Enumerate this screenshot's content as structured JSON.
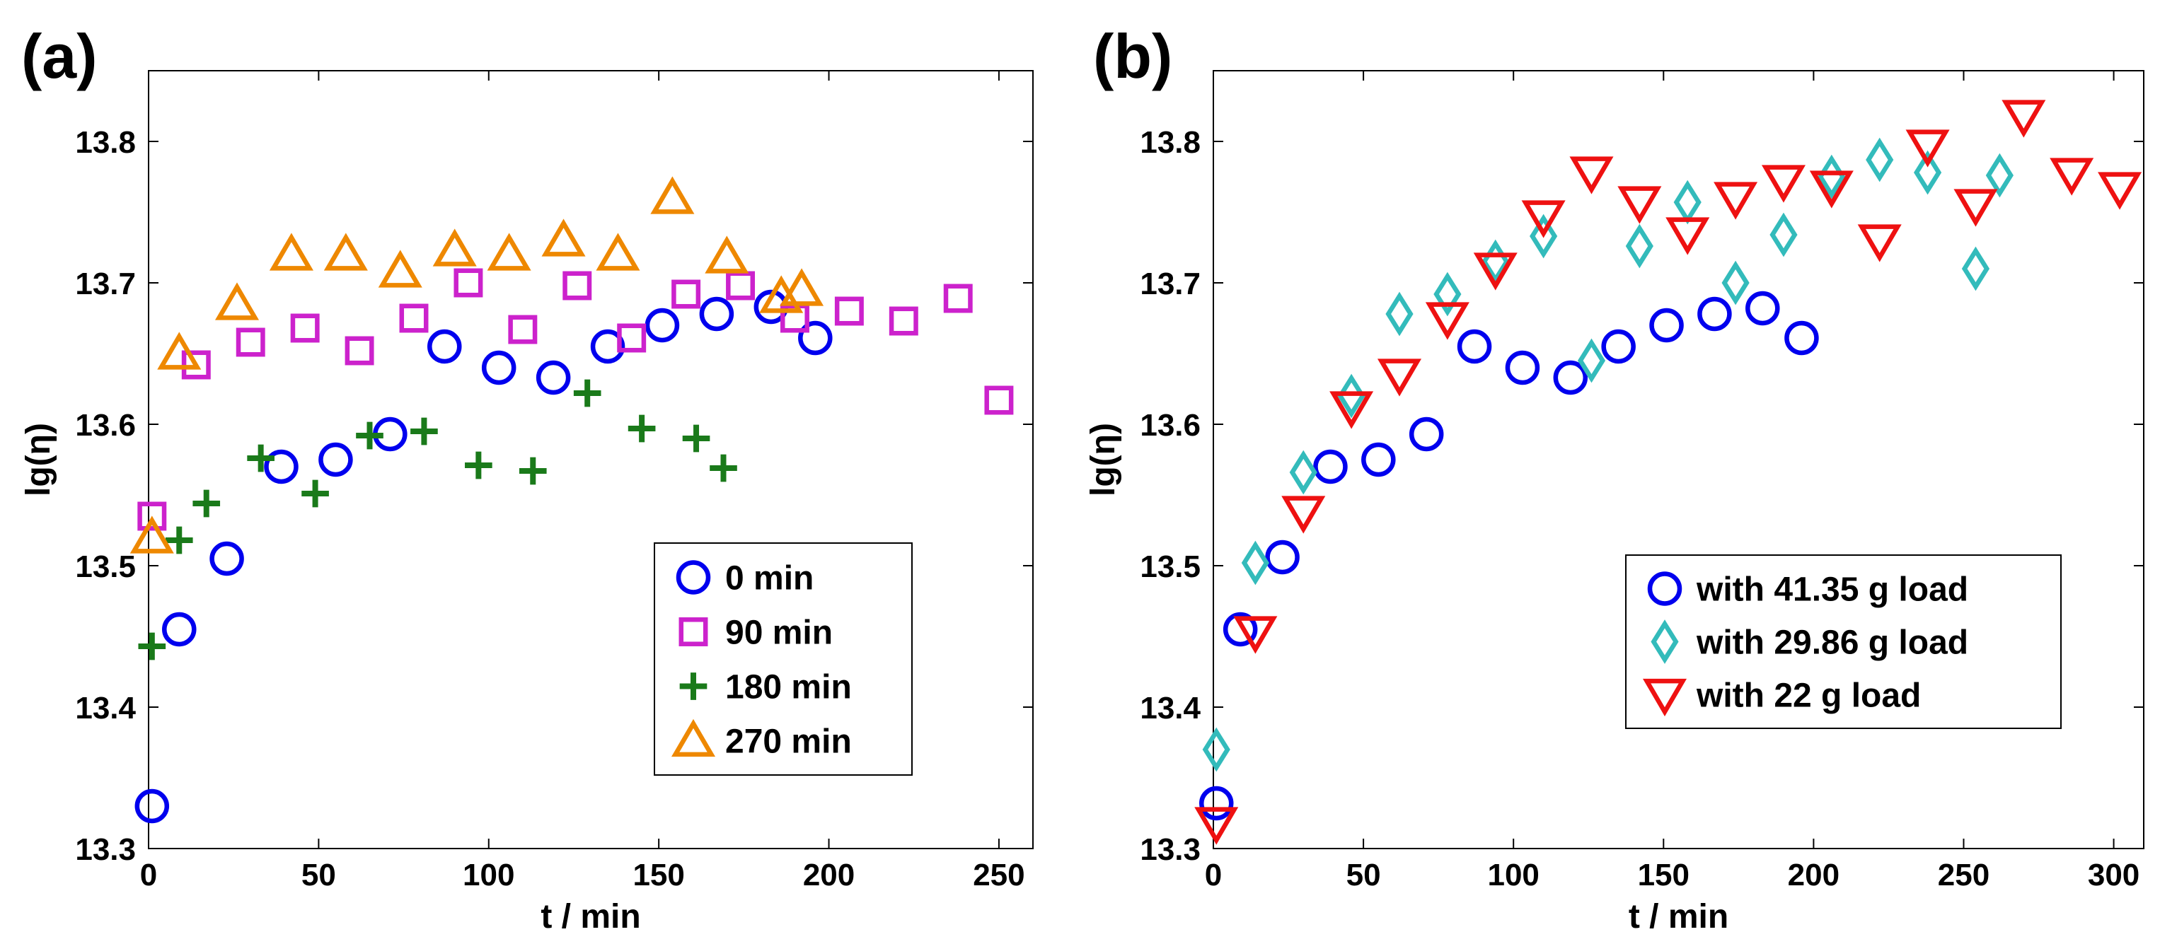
{
  "chart_data": [
    {
      "panel": "(a)",
      "type": "scatter",
      "xlabel": "t / min",
      "ylabel": "lg(η)",
      "xlim": [
        0,
        260
      ],
      "ylim": [
        13.3,
        13.85
      ],
      "xticks": [
        0,
        50,
        100,
        150,
        200,
        250
      ],
      "yticks": [
        13.3,
        13.4,
        13.5,
        13.6,
        13.7,
        13.8
      ],
      "xtick_labels": [
        "0",
        "50",
        "100",
        "150",
        "200",
        "250"
      ],
      "ytick_labels": [
        "13.3",
        "13.4",
        "13.5",
        "13.6",
        "13.7",
        "13.8"
      ],
      "legend_position": "bottom-right",
      "series": [
        {
          "name": "0 min",
          "marker": "circle",
          "color": "#0000ee",
          "x": [
            1,
            9,
            23,
            39,
            55,
            71,
            87,
            103,
            119,
            135,
            151,
            167,
            183,
            196
          ],
          "y": [
            13.33,
            13.455,
            13.505,
            13.57,
            13.575,
            13.593,
            13.655,
            13.64,
            13.633,
            13.655,
            13.67,
            13.678,
            13.683,
            13.661
          ]
        },
        {
          "name": "90 min",
          "marker": "square",
          "color": "#cc22cc",
          "x": [
            1,
            14,
            30,
            46,
            62,
            78,
            94,
            110,
            126,
            142,
            158,
            174,
            190,
            206,
            222,
            238,
            250
          ],
          "y": [
            13.535,
            13.642,
            13.658,
            13.668,
            13.652,
            13.675,
            13.7,
            13.667,
            13.698,
            13.661,
            13.692,
            13.698,
            13.675,
            13.68,
            13.673,
            13.689,
            13.617
          ]
        },
        {
          "name": "180 min",
          "marker": "plus",
          "color": "#1a7a1a",
          "x": [
            1,
            9,
            17,
            33,
            49,
            65,
            81,
            97,
            113,
            129,
            145,
            161,
            169
          ],
          "y": [
            13.443,
            13.518,
            13.544,
            13.576,
            13.551,
            13.592,
            13.595,
            13.571,
            13.567,
            13.622,
            13.597,
            13.59,
            13.569
          ]
        },
        {
          "name": "270 min",
          "marker": "triangle-up",
          "color": "#ee8800",
          "x": [
            1,
            9,
            26,
            42,
            58,
            74,
            90,
            106,
            122,
            138,
            154,
            170,
            186,
            192
          ],
          "y": [
            13.52,
            13.65,
            13.685,
            13.72,
            13.72,
            13.708,
            13.723,
            13.72,
            13.73,
            13.72,
            13.76,
            13.718,
            13.69,
            13.695
          ]
        }
      ]
    },
    {
      "panel": "(b)",
      "type": "scatter",
      "xlabel": "t / min",
      "ylabel": "lg(η)",
      "xlim": [
        0,
        310
      ],
      "ylim": [
        13.3,
        13.85
      ],
      "xticks": [
        0,
        50,
        100,
        150,
        200,
        250,
        300
      ],
      "yticks": [
        13.3,
        13.4,
        13.5,
        13.6,
        13.7,
        13.8
      ],
      "xtick_labels": [
        "0",
        "50",
        "100",
        "150",
        "200",
        "250",
        "300"
      ],
      "ytick_labels": [
        "13.3",
        "13.4",
        "13.5",
        "13.6",
        "13.7",
        "13.8"
      ],
      "legend_position": "bottom-right",
      "series": [
        {
          "name": "with 41.35 g load",
          "marker": "circle",
          "color": "#0000ee",
          "x": [
            1,
            9,
            23,
            39,
            55,
            71,
            87,
            103,
            119,
            135,
            151,
            167,
            183,
            196
          ],
          "y": [
            13.332,
            13.455,
            13.506,
            13.57,
            13.575,
            13.593,
            13.655,
            13.64,
            13.633,
            13.655,
            13.67,
            13.678,
            13.682,
            13.661
          ]
        },
        {
          "name": "with 29.86 g load",
          "marker": "diamond",
          "color": "#33bbbb",
          "x": [
            1,
            14,
            30,
            46,
            62,
            78,
            94,
            110,
            126,
            142,
            158,
            174,
            190,
            206,
            222,
            238,
            254,
            262
          ],
          "y": [
            13.37,
            13.502,
            13.566,
            13.62,
            13.678,
            13.692,
            13.715,
            13.733,
            13.645,
            13.726,
            13.757,
            13.7,
            13.734,
            13.775,
            13.787,
            13.778,
            13.71,
            13.776
          ]
        },
        {
          "name": "with 22 g load",
          "marker": "triangle-down",
          "color": "#ee1111",
          "x": [
            1,
            14,
            30,
            46,
            62,
            78,
            94,
            110,
            126,
            142,
            158,
            174,
            190,
            206,
            222,
            238,
            254,
            270,
            286,
            302
          ],
          "y": [
            13.318,
            13.453,
            13.538,
            13.612,
            13.635,
            13.675,
            13.71,
            13.747,
            13.778,
            13.757,
            13.735,
            13.76,
            13.772,
            13.768,
            13.73,
            13.797,
            13.755,
            13.818,
            13.777,
            13.767
          ]
        }
      ]
    }
  ]
}
